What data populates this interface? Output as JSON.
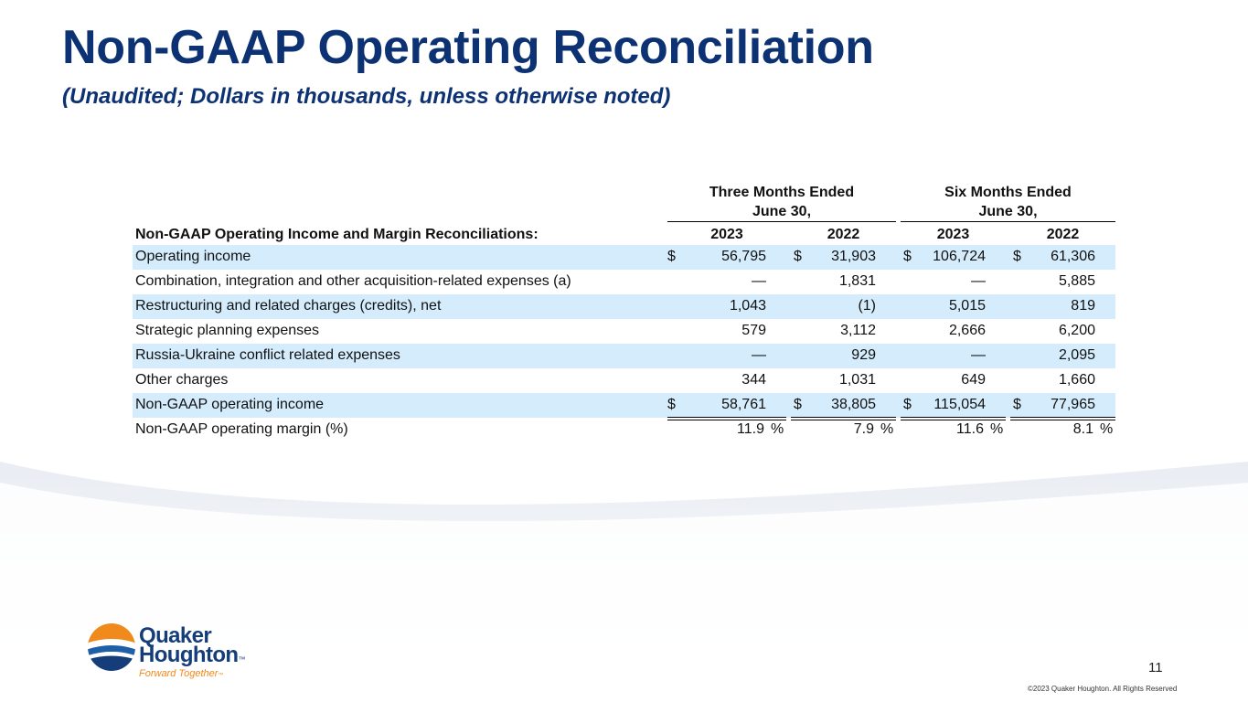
{
  "title": "Non-GAAP Operating Reconciliation",
  "subtitle": "(Unaudited; Dollars in thousands, unless otherwise noted)",
  "table": {
    "periods": [
      {
        "line1": "Three Months Ended",
        "line2": "June 30,"
      },
      {
        "line1": "Six Months Ended",
        "line2": "June 30,"
      }
    ],
    "header_label": "Non-GAAP Operating Income and Margin Reconciliations:",
    "years": [
      "2023",
      "2022",
      "2023",
      "2022"
    ],
    "currency_symbol": "$",
    "percent_symbol": "%",
    "rows": [
      {
        "label": "Operating income",
        "values": [
          "56,795",
          "31,903",
          "106,724",
          "61,306"
        ],
        "dollar": true
      },
      {
        "label": "Combination, integration and other acquisition-related expenses (a)",
        "values": [
          "—",
          "1,831",
          "—",
          "5,885"
        ],
        "dollar": false
      },
      {
        "label": "Restructuring and related charges (credits), net",
        "values": [
          "1,043",
          "(1)",
          "5,015",
          "819"
        ],
        "dollar": false
      },
      {
        "label": "Strategic planning expenses",
        "values": [
          "579",
          "3,112",
          "2,666",
          "6,200"
        ],
        "dollar": false
      },
      {
        "label": "Russia-Ukraine conflict related expenses",
        "values": [
          "—",
          "929",
          "—",
          "2,095"
        ],
        "dollar": false
      },
      {
        "label": "Other charges",
        "values": [
          "344",
          "1,031",
          "649",
          "1,660"
        ],
        "dollar": false
      },
      {
        "label": "Non-GAAP operating income",
        "values": [
          "58,761",
          "38,805",
          "115,054",
          "77,965"
        ],
        "dollar": true
      },
      {
        "label": "Non-GAAP operating margin (%)",
        "values": [
          "11.9",
          "7.9",
          "11.6",
          "8.1"
        ],
        "dollar": false,
        "percent": true
      }
    ]
  },
  "footer": {
    "page_number": "11",
    "copyright": "©2023 Quaker Houghton. All Rights Reserved"
  },
  "logo": {
    "line1": "Quaker",
    "line2": "Houghton",
    "tm": "™",
    "tagline": "Forward Together",
    "tagline_tm": "™"
  },
  "colors": {
    "title": "#0d3274",
    "row_shade": "#d4ecfc",
    "logo_blue": "#143d7a",
    "logo_orange": "#f08a1c"
  }
}
